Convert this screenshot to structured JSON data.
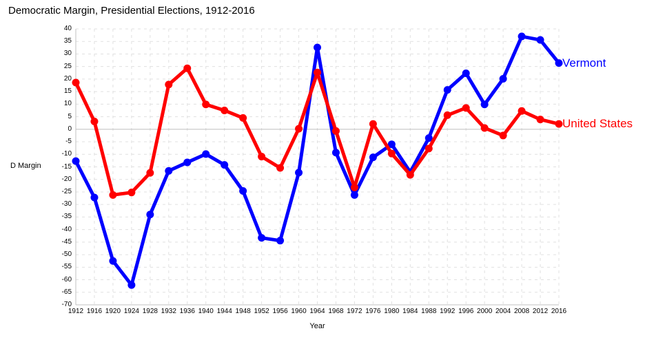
{
  "title": "Democratic Margin, Presidential Elections, 1912-2016",
  "chart_data": {
    "type": "line",
    "x": [
      1912,
      1916,
      1920,
      1924,
      1928,
      1932,
      1936,
      1940,
      1944,
      1948,
      1952,
      1956,
      1960,
      1964,
      1968,
      1972,
      1976,
      1980,
      1984,
      1988,
      1992,
      1996,
      2000,
      2004,
      2008,
      2012,
      2016
    ],
    "series": [
      {
        "name": "Vermont",
        "color": "#0000ff",
        "values": [
          -12.7,
          -27.2,
          -52.5,
          -62.1,
          -34.0,
          -16.6,
          -13.2,
          -9.9,
          -14.2,
          -24.6,
          -43.3,
          -44.4,
          -17.3,
          32.6,
          -9.3,
          -26.2,
          -11.2,
          -6.0,
          -17.1,
          -3.5,
          15.7,
          22.3,
          9.9,
          20.1,
          37.0,
          35.6,
          26.4
        ]
      },
      {
        "name": "United States",
        "color": "#ff0000",
        "values": [
          18.6,
          3.1,
          -26.2,
          -25.2,
          -17.4,
          17.8,
          24.3,
          9.9,
          7.5,
          4.5,
          -10.9,
          -15.4,
          0.2,
          22.6,
          -0.7,
          -23.2,
          2.1,
          -9.7,
          -18.2,
          -7.7,
          5.6,
          8.5,
          0.5,
          -2.5,
          7.3,
          3.9,
          2.1
        ]
      }
    ],
    "xlabel": "Year",
    "ylabel": "D Margin",
    "ylim": [
      -70,
      40
    ],
    "ytick_step": 5,
    "grid": "dashed",
    "legend_position": "line-end-labels",
    "colors": {
      "grid": "#e0e0e0",
      "axis": "#c0c0c0",
      "zero_line": "#bdbdbd",
      "text": "#000000"
    }
  }
}
